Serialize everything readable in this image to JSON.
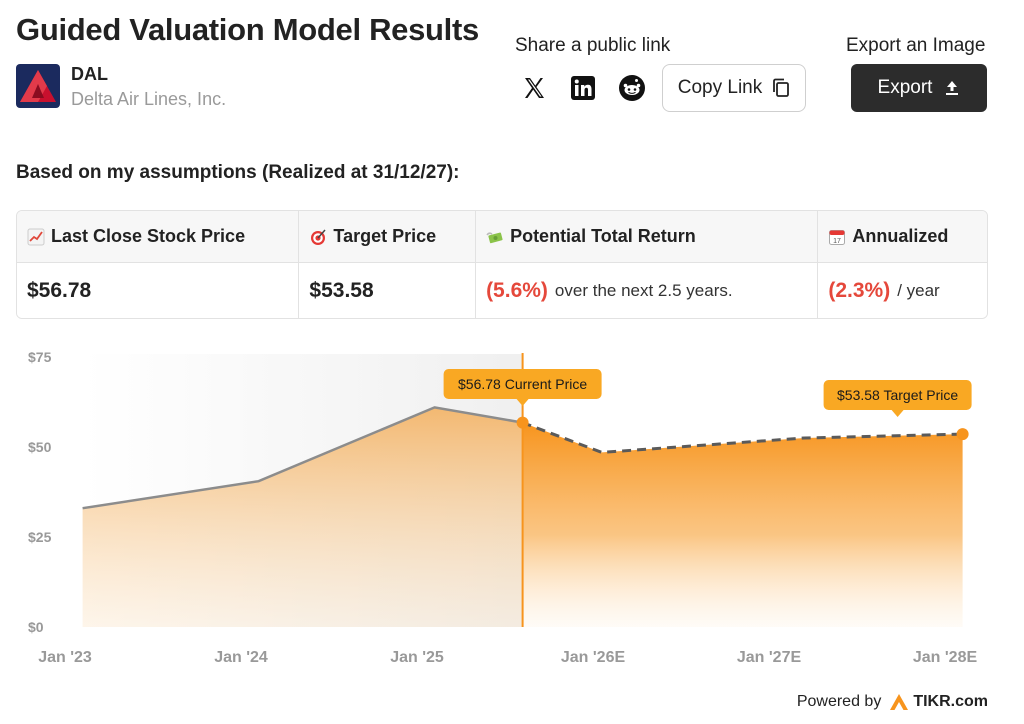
{
  "header": {
    "title": "Guided Valuation Model Results",
    "ticker": "DAL",
    "company_name": "Delta Air Lines, Inc."
  },
  "share": {
    "label": "Share a public link",
    "icons": [
      "x-icon",
      "linkedin-icon",
      "reddit-icon"
    ],
    "copy_label": "Copy Link"
  },
  "export": {
    "label": "Export an Image",
    "button_label": "Export"
  },
  "assumptions_text": "Based on my assumptions (Realized at 31/12/27):",
  "summary": {
    "headers": {
      "last_close": "Last Close Stock Price",
      "target": "Target Price",
      "return": "Potential Total Return",
      "annualized": "Annualized"
    },
    "values": {
      "last_close": "$56.78",
      "target": "$53.58",
      "return_value": "(5.6%)",
      "return_suffix": "over the next 2.5 years.",
      "annualized_value": "(2.3%)",
      "annualized_suffix": "/ year"
    }
  },
  "colors": {
    "accent": "#f7941d",
    "negative": "#e5483b",
    "dark": "#2c2c2c"
  },
  "chart_data": {
    "type": "area",
    "y_ticks": [
      "$75",
      "$50",
      "$25",
      "$0"
    ],
    "x_ticks": [
      "Jan '23",
      "Jan '24",
      "Jan '25",
      "Jan '26E",
      "Jan '27E",
      "Jan '28E"
    ],
    "ylim": [
      0,
      75
    ],
    "historical": {
      "x": [
        0.1,
        1.1,
        2.1,
        2.6
      ],
      "y": [
        33,
        40.5,
        61,
        56.78
      ]
    },
    "projected": {
      "x": [
        2.6,
        3.05,
        4.2,
        5.1
      ],
      "y": [
        56.78,
        48.5,
        52.5,
        53.58
      ]
    },
    "annotations": {
      "current": "$56.78 Current Price",
      "target": "$53.58 Target Price"
    }
  },
  "footer": {
    "powered_by": "Powered by",
    "brand": "TIKR.com"
  }
}
